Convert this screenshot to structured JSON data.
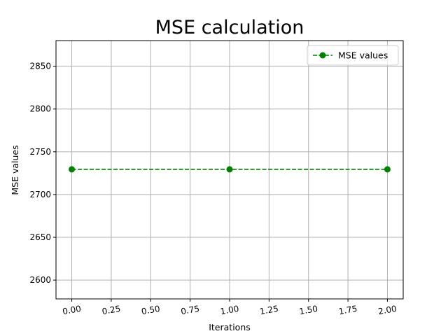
{
  "chart_data": {
    "type": "line",
    "title": "MSE calculation",
    "xlabel": "Iterations",
    "ylabel": "MSE values",
    "x": [
      0,
      1,
      2
    ],
    "series": [
      {
        "name": "MSE values",
        "values": [
          2729.5,
          2729.5,
          2729.5
        ],
        "color": "#008000",
        "linestyle": "dashed",
        "marker": "circle"
      }
    ],
    "xlim": [
      -0.1,
      2.1
    ],
    "ylim": [
      2578,
      2880
    ],
    "xticks": [
      0,
      0.25,
      0.5,
      0.75,
      1,
      1.25,
      1.5,
      1.75,
      2
    ],
    "xtick_labels": [
      "0.00",
      "0.25",
      "0.50",
      "0.75",
      "1.00",
      "1.25",
      "1.50",
      "1.75",
      "2.00"
    ],
    "yticks": [
      2600,
      2650,
      2700,
      2750,
      2800,
      2850
    ],
    "ytick_labels": [
      "2600",
      "2650",
      "2700",
      "2750",
      "2800",
      "2850"
    ],
    "xtick_rotation_deg": 10,
    "grid": true,
    "grid_color": "#b0b0b0",
    "legend_position": "top-right"
  }
}
